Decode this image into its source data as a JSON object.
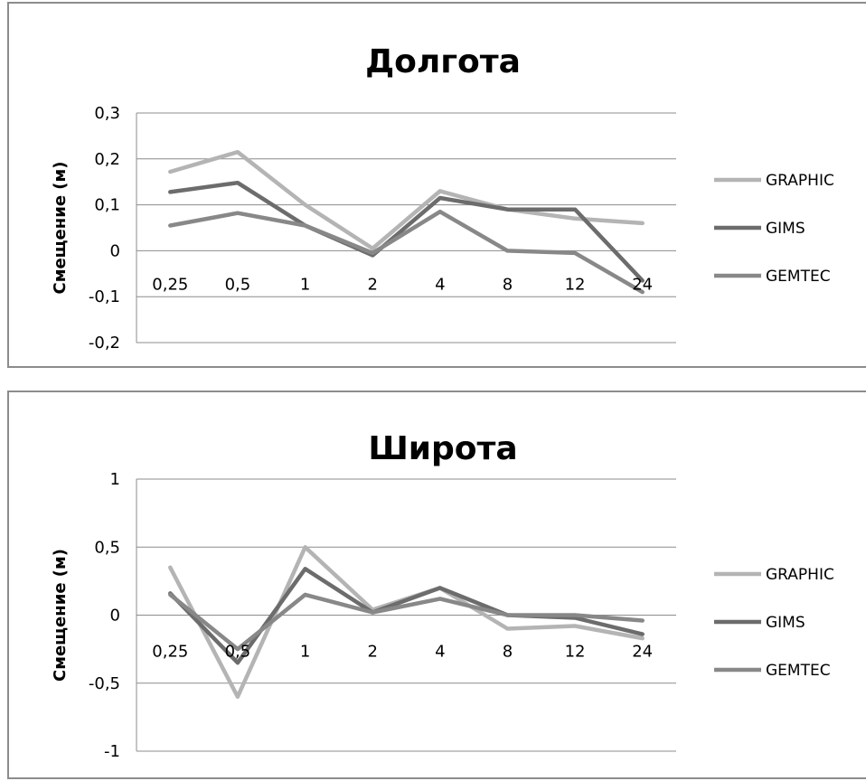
{
  "chart_data": [
    {
      "type": "line",
      "title": "Долгота",
      "xlabel": "",
      "ylabel": "Смещение (м)",
      "categories": [
        "0,25",
        "0,5",
        "1",
        "2",
        "4",
        "8",
        "12",
        "24"
      ],
      "yticks": [
        "0,3",
        "0,2",
        "0,1",
        "0",
        "-0,1",
        "-0,2"
      ],
      "ytick_values": [
        0.3,
        0.2,
        0.1,
        0,
        -0.1,
        -0.2
      ],
      "ylim": [
        -0.2,
        0.3
      ],
      "grid": true,
      "legend_position": "right",
      "series": [
        {
          "name": "GRAPHIC",
          "color": "#b4b4b4",
          "values": [
            0.172,
            0.215,
            0.1,
            0.005,
            0.13,
            0.09,
            0.07,
            0.06
          ]
        },
        {
          "name": "GIMS",
          "color": "#6c6c6c",
          "values": [
            0.128,
            0.148,
            0.055,
            -0.01,
            0.115,
            0.09,
            0.09,
            -0.065
          ]
        },
        {
          "name": "GEMTEC",
          "color": "#888888",
          "values": [
            0.055,
            0.082,
            0.055,
            -0.005,
            0.085,
            0.0,
            -0.005,
            -0.09
          ]
        }
      ]
    },
    {
      "type": "line",
      "title": "Широта",
      "xlabel": "",
      "ylabel": "Смещение (м)",
      "categories": [
        "0,25",
        "0,5",
        "1",
        "2",
        "4",
        "8",
        "12",
        "24"
      ],
      "yticks": [
        "1",
        "0,5",
        "0",
        "-0,5",
        "-1"
      ],
      "ytick_values": [
        1,
        0.5,
        0,
        -0.5,
        -1
      ],
      "ylim": [
        -1,
        1
      ],
      "grid": true,
      "legend_position": "right",
      "series": [
        {
          "name": "GRAPHIC",
          "color": "#b4b4b4",
          "values": [
            0.35,
            -0.6,
            0.5,
            0.04,
            0.2,
            -0.1,
            -0.08,
            -0.17
          ]
        },
        {
          "name": "GIMS",
          "color": "#6c6c6c",
          "values": [
            0.16,
            -0.35,
            0.34,
            0.02,
            0.2,
            0.0,
            -0.02,
            -0.14
          ]
        },
        {
          "name": "GEMTEC",
          "color": "#888888",
          "values": [
            0.15,
            -0.25,
            0.15,
            0.02,
            0.12,
            0.0,
            0.0,
            -0.04
          ]
        }
      ]
    }
  ]
}
